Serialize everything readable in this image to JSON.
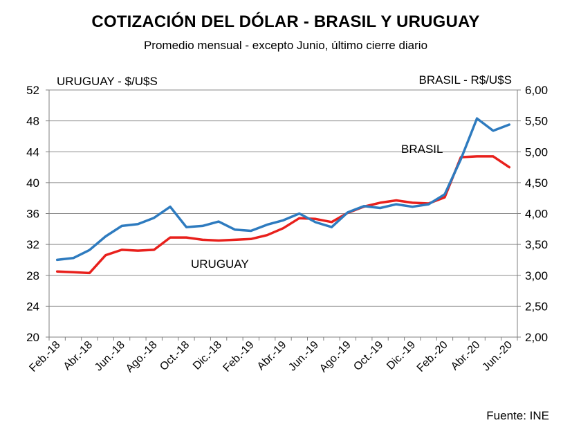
{
  "title": "COTIZACIÓN DEL DÓLAR - BRASIL Y URUGUAY",
  "subtitle": "Promedio mensual  - excepto Junio, último cierre diario",
  "source": "Fuente: INE",
  "colors": {
    "brasil": "#2e7bbf",
    "uruguay": "#e8201c",
    "grid": "#8a8a8a",
    "axis": "#7f7f7f"
  },
  "chart_data": {
    "type": "line",
    "categories": [
      "Feb.-18",
      "Mar.-18",
      "Abr.-18",
      "May.-18",
      "Jun.-18",
      "Jul.-18",
      "Ago.-18",
      "Sep.-18",
      "Oct.-18",
      "Nov.-18",
      "Dic.-18",
      "Ene.-19",
      "Feb.-19",
      "Mar.-19",
      "Abr.-19",
      "May.-19",
      "Jun.-19",
      "Jul.-19",
      "Ago.-19",
      "Sep.-19",
      "Oct.-19",
      "Nov.-19",
      "Dic.-19",
      "Ene.-20",
      "Feb.-20",
      "Mar.-20",
      "Abr.-20",
      "May.-20",
      "Jun.-20"
    ],
    "tick_labels": [
      "Feb.-18",
      "Abr.-18",
      "Jun.-18",
      "Ago.-18",
      "Oct.-18",
      "Dic.-18",
      "Feb.-19",
      "Abr.-19",
      "Jun.-19",
      "Ago.-19",
      "Oct.-19",
      "Dic.-19",
      "Feb.-20",
      "Abr.-20",
      "Jun.-20"
    ],
    "left_axis": {
      "label": "URUGUAY - $/U$S",
      "range": [
        20,
        52
      ],
      "ticks": [
        "20",
        "24",
        "28",
        "32",
        "36",
        "40",
        "44",
        "48",
        "52"
      ]
    },
    "right_axis": {
      "label": "BRASIL - R$/U$S",
      "range": [
        2.0,
        6.0
      ],
      "ticks": [
        "2,00",
        "2,50",
        "3,00",
        "3,50",
        "4,00",
        "4,50",
        "5,00",
        "5,50",
        "6,00"
      ]
    },
    "series": [
      {
        "name": "URUGUAY",
        "axis": "left",
        "values": [
          28.5,
          28.4,
          28.3,
          30.6,
          31.3,
          31.2,
          31.3,
          32.9,
          32.9,
          32.6,
          32.5,
          32.6,
          32.7,
          33.2,
          34.1,
          35.4,
          35.3,
          34.9,
          36.1,
          36.9,
          37.4,
          37.7,
          37.4,
          37.3,
          38.1,
          43.3,
          43.4,
          43.4,
          42.0
        ]
      },
      {
        "name": "BRASIL",
        "axis": "right",
        "values": [
          3.25,
          3.28,
          3.41,
          3.63,
          3.8,
          3.83,
          3.93,
          4.11,
          3.78,
          3.8,
          3.87,
          3.74,
          3.72,
          3.82,
          3.89,
          4.0,
          3.86,
          3.78,
          4.02,
          4.12,
          4.09,
          4.15,
          4.11,
          4.15,
          4.31,
          4.88,
          5.54,
          5.34,
          5.44
        ]
      }
    ],
    "annotations": [
      {
        "text": "BRASIL",
        "series": "BRASIL"
      },
      {
        "text": "URUGUAY",
        "series": "URUGUAY"
      }
    ],
    "grid": true,
    "legend": "none"
  }
}
